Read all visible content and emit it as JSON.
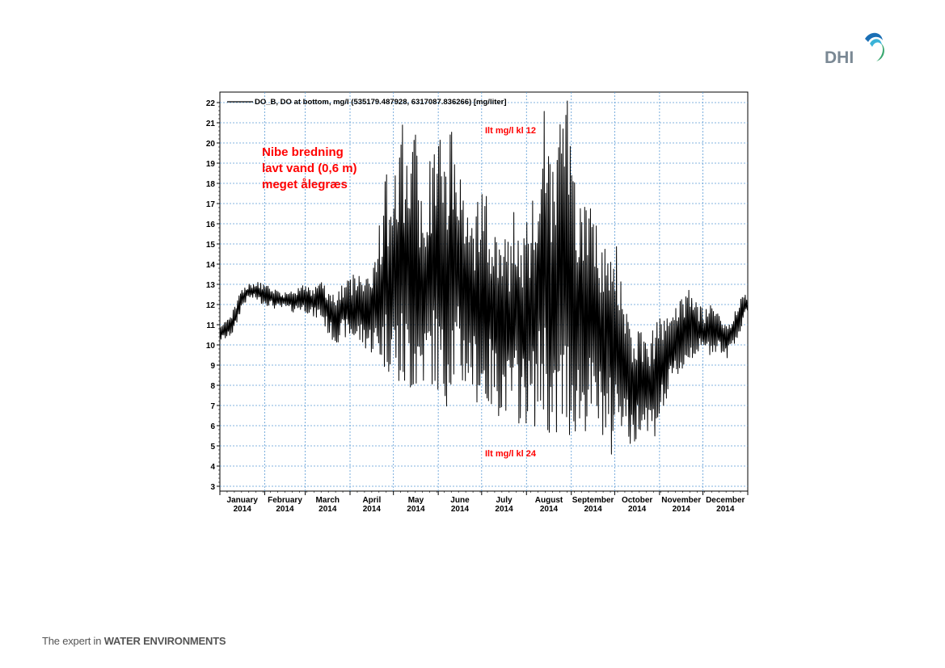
{
  "logo": {
    "text": "DHI",
    "colors": {
      "text": "#7a8894",
      "swoosh_dark": "#1a6fb5",
      "swoosh_light": "#3bb3d8",
      "swoosh_green": "#3aa870"
    }
  },
  "footer": {
    "prefix": "The expert in ",
    "emphasis": "WATER ENVIRONMENTS"
  },
  "chart_data": {
    "type": "line",
    "legend": "DO_B, DO at bottom, mg/l (535179.487928, 6317087.836266) [mg/liter]",
    "legend_position": "top-left",
    "annotations": {
      "title_lines": [
        "Nibe bredning",
        "lavt vand (0,6 m)",
        "meget ålegræs"
      ],
      "noon_label": "Ilt mg/l kl 12",
      "midnight_label": "Ilt mg/l kl 24"
    },
    "ylim": [
      3,
      22
    ],
    "y_ticks": [
      3,
      4,
      5,
      6,
      7,
      8,
      9,
      10,
      11,
      12,
      13,
      14,
      15,
      16,
      17,
      18,
      19,
      20,
      21,
      22
    ],
    "x_range_days": [
      0,
      365
    ],
    "x_ticks": [
      {
        "month": "January",
        "year": "2014"
      },
      {
        "month": "February",
        "year": "2014"
      },
      {
        "month": "March",
        "year": "2014"
      },
      {
        "month": "April",
        "year": "2014"
      },
      {
        "month": "May",
        "year": "2014"
      },
      {
        "month": "June",
        "year": "2014"
      },
      {
        "month": "July",
        "year": "2014"
      },
      {
        "month": "August",
        "year": "2014"
      },
      {
        "month": "September",
        "year": "2014"
      },
      {
        "month": "October",
        "year": "2014"
      },
      {
        "month": "November",
        "year": "2014"
      },
      {
        "month": "December",
        "year": "2014"
      }
    ],
    "grid": true,
    "grid_color": "#5b9bd5",
    "series": [
      {
        "name": "DO_B, DO at bottom, mg/l",
        "color": "#000000",
        "envelope_dates": [
          "2014-01-01",
          "2014-01-06",
          "2014-01-11",
          "2014-01-16",
          "2014-01-21",
          "2014-01-26",
          "2014-01-31",
          "2014-02-05",
          "2014-02-10",
          "2014-02-15",
          "2014-02-20",
          "2014-02-25",
          "2014-03-02",
          "2014-03-07",
          "2014-03-12",
          "2014-03-17",
          "2014-03-22",
          "2014-03-27",
          "2014-04-01",
          "2014-04-06",
          "2014-04-11",
          "2014-04-16",
          "2014-04-21",
          "2014-04-26",
          "2014-05-01",
          "2014-05-06",
          "2014-05-11",
          "2014-05-16",
          "2014-05-21",
          "2014-05-26",
          "2014-05-31",
          "2014-06-05",
          "2014-06-10",
          "2014-06-15",
          "2014-06-20",
          "2014-06-25",
          "2014-06-30",
          "2014-07-05",
          "2014-07-10",
          "2014-07-15",
          "2014-07-20",
          "2014-07-25",
          "2014-07-30",
          "2014-08-04",
          "2014-08-09",
          "2014-08-14",
          "2014-08-19",
          "2014-08-24",
          "2014-08-29",
          "2014-09-03",
          "2014-09-08",
          "2014-09-13",
          "2014-09-18",
          "2014-09-23",
          "2014-09-28",
          "2014-10-03",
          "2014-10-08",
          "2014-10-13",
          "2014-10-18",
          "2014-10-23",
          "2014-10-28",
          "2014-11-02",
          "2014-11-07",
          "2014-11-12",
          "2014-11-17",
          "2014-11-22",
          "2014-11-27",
          "2014-12-02",
          "2014-12-07",
          "2014-12-12",
          "2014-12-17",
          "2014-12-22",
          "2014-12-27",
          "2014-12-31"
        ],
        "daily_max": [
          11.0,
          11.2,
          12.0,
          12.8,
          13.0,
          13.2,
          13.0,
          12.9,
          12.8,
          12.6,
          12.7,
          12.9,
          13.0,
          12.9,
          13.6,
          12.8,
          12.5,
          13.0,
          13.5,
          13.8,
          13.5,
          14.0,
          16.0,
          18.5,
          17.5,
          21.2,
          20.0,
          21.1,
          17.0,
          19.0,
          21.1,
          19.0,
          21.1,
          20.5,
          17.0,
          16.5,
          17.5,
          18.0,
          16.0,
          17.0,
          15.0,
          17.5,
          16.0,
          16.5,
          19.5,
          22.0,
          19.0,
          21.5,
          22.3,
          19.0,
          17.5,
          17.0,
          16.0,
          15.0,
          17.2,
          15.0,
          12.0,
          10.8,
          11.0,
          10.5,
          10.8,
          11.5,
          11.5,
          12.0,
          12.5,
          13.2,
          12.0,
          11.8,
          12.0,
          11.5,
          11.0,
          11.5,
          12.5,
          12.5
        ],
        "daily_min": [
          10.2,
          10.3,
          10.6,
          11.8,
          12.3,
          12.2,
          12.0,
          11.9,
          11.7,
          11.8,
          11.6,
          11.7,
          11.6,
          11.3,
          11.2,
          10.5,
          10.0,
          10.4,
          10.2,
          10.0,
          9.8,
          9.5,
          9.0,
          8.5,
          8.8,
          7.0,
          7.5,
          7.2,
          7.8,
          8.0,
          7.5,
          6.5,
          7.8,
          7.5,
          7.8,
          7.5,
          6.8,
          6.5,
          6.8,
          6.2,
          6.5,
          6.0,
          6.2,
          5.8,
          6.0,
          6.5,
          3.5,
          5.0,
          5.0,
          5.5,
          5.2,
          5.8,
          5.5,
          5.5,
          3.8,
          5.8,
          6.0,
          4.3,
          5.8,
          5.8,
          5.3,
          6.3,
          7.2,
          8.2,
          8.5,
          9.0,
          9.5,
          9.5,
          9.5,
          9.8,
          9.2,
          10.0,
          10.5,
          11.5
        ]
      }
    ]
  }
}
